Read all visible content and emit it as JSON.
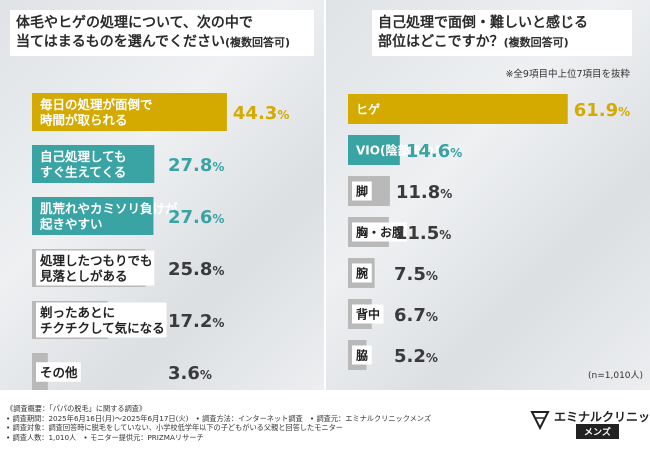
{
  "left": {
    "title_line1": "体毛やヒゲの処理について、次の中で",
    "title_line2": "当てはまるものを選んでください",
    "title_suffix": "(複数回答可)"
  },
  "right": {
    "title_line1": "自己処理で面倒・難しいと感じる",
    "title_line2": "部位はどこですか？",
    "title_suffix": "(複数回答可)",
    "note": "※全9項目中上位7項目を抜粋",
    "n_label": "(n=1,010人)"
  },
  "footer": {
    "lines": [
      "《調査概要：「パパの脱毛」に関する調査》",
      "• 調査期間：2025年6月16日(月)～2025年6月17日(火)　• 調査方法：インターネット調査　• 調査元：エミナルクリニックメンズ",
      "• 調査対象：調査回答時に脱毛をしていない、小学校低学年以下の子どもがいる父親と回答したモニター",
      "• 調査人数：1,010人　• モニター提供元：PRIZMAリサーチ"
    ],
    "logo_name": "エミナルクリニック",
    "logo_sub": "メンズ"
  },
  "colors": {
    "gold": "#d4aa00",
    "teal": "#3aa3a3",
    "gray": "#b9b9b9",
    "dark": "#3a3a3a"
  },
  "chart_data": [
    {
      "type": "bar",
      "orientation": "horizontal",
      "title": "体毛やヒゲの処理について、次の中で当てはまるものを選んでください(複数回答可)",
      "unit": "%",
      "categories": [
        [
          "毎日の処理が面倒で",
          "時間が取られる"
        ],
        [
          "自己処理しても",
          "すぐ生えてくる"
        ],
        [
          "肌荒れやカミソリ負けが",
          "起きやすい"
        ],
        [
          "処理したつもりでも",
          "見落としがある"
        ],
        [
          "剃ったあとに",
          "チクチクして気になる"
        ],
        [
          "その他"
        ]
      ],
      "values": [
        44.3,
        27.8,
        27.6,
        25.8,
        17.2,
        3.6
      ],
      "colors": [
        "#d4aa00",
        "#3aa3a3",
        "#3aa3a3",
        "#b9b9b9",
        "#b9b9b9",
        "#b9b9b9"
      ],
      "xlim": [
        0,
        60
      ]
    },
    {
      "type": "bar",
      "orientation": "horizontal",
      "title": "自己処理で面倒・難しいと感じる部位はどこですか？(複数回答可)",
      "unit": "%",
      "categories": [
        [
          "ヒゲ"
        ],
        [
          "VIO(陰部まわり)"
        ],
        [
          "脚"
        ],
        [
          "胸・お腹"
        ],
        [
          "腕"
        ],
        [
          "背中"
        ],
        [
          "脇"
        ]
      ],
      "values": [
        61.9,
        14.6,
        11.8,
        11.5,
        7.5,
        6.7,
        5.2
      ],
      "colors": [
        "#d4aa00",
        "#3aa3a3",
        "#b9b9b9",
        "#b9b9b9",
        "#b9b9b9",
        "#b9b9b9",
        "#b9b9b9"
      ],
      "xlim": [
        0,
        80
      ]
    }
  ]
}
